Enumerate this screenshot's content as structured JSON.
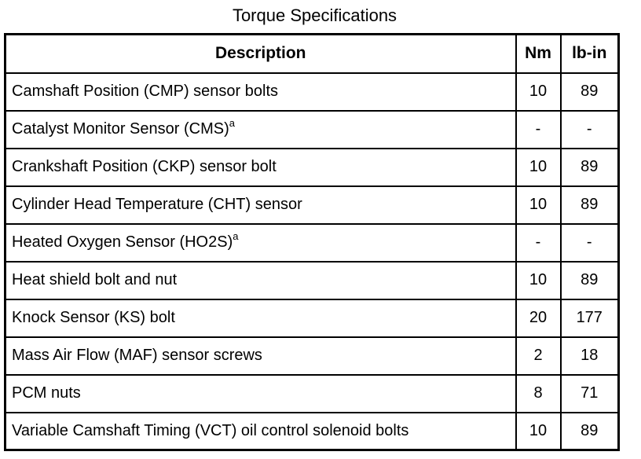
{
  "title": "Torque Specifications",
  "table": {
    "headers": {
      "description": "Description",
      "nm": "Nm",
      "lb_in": "lb-in"
    },
    "rows": [
      {
        "description": "Camshaft Position (CMP) sensor bolts",
        "footnote": "",
        "nm": "10",
        "lb_in": "89"
      },
      {
        "description": "Catalyst Monitor Sensor (CMS)",
        "footnote": "a",
        "nm": "-",
        "lb_in": "-"
      },
      {
        "description": "Crankshaft Position (CKP) sensor bolt",
        "footnote": "",
        "nm": "10",
        "lb_in": "89"
      },
      {
        "description": "Cylinder Head Temperature (CHT) sensor",
        "footnote": "",
        "nm": "10",
        "lb_in": "89"
      },
      {
        "description": "Heated Oxygen Sensor (HO2S)",
        "footnote": "a",
        "nm": "-",
        "lb_in": "-"
      },
      {
        "description": "Heat shield bolt and nut",
        "footnote": "",
        "nm": "10",
        "lb_in": "89"
      },
      {
        "description": "Knock Sensor (KS) bolt",
        "footnote": "",
        "nm": "20",
        "lb_in": "177"
      },
      {
        "description": "Mass Air Flow (MAF) sensor screws",
        "footnote": "",
        "nm": "2",
        "lb_in": "18"
      },
      {
        "description": "PCM nuts",
        "footnote": "",
        "nm": "8",
        "lb_in": "71"
      },
      {
        "description": "Variable Camshaft Timing (VCT) oil control solenoid bolts",
        "footnote": "",
        "nm": "10",
        "lb_in": "89"
      }
    ]
  },
  "colors": {
    "background": "#ffffff",
    "border": "#000000",
    "text": "#000000"
  }
}
